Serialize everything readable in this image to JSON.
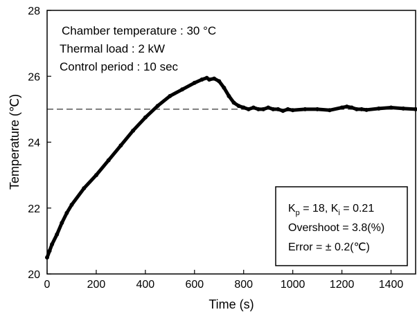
{
  "chart_data": {
    "type": "line",
    "title": "",
    "xlabel": "Time (s)",
    "ylabel": "Temperature (℃)",
    "xlim": [
      0,
      1500
    ],
    "ylim": [
      20,
      28
    ],
    "xticks": [
      0,
      200,
      400,
      600,
      800,
      1000,
      1200,
      1400
    ],
    "yticks": [
      20,
      22,
      24,
      26,
      28
    ],
    "grid": false,
    "legend": "none",
    "annotations": {
      "top_left": [
        "Chamber temperature : 30 °C",
        "Thermal load : 2 kW",
        "Control period : 10 sec"
      ],
      "box": {
        "gains": {
          "kp_symbol": "K",
          "kp_sub": "p",
          "kp_value": " = 18, ",
          "ki_symbol": "K",
          "ki_sub": "i",
          "ki_value": " = 0.21"
        },
        "overshoot": "Overshoot = 3.8(%)",
        "error": "Error = ±  0.2(℃)"
      }
    },
    "setpoint": {
      "y": 25,
      "style": "dashed"
    },
    "series": [
      {
        "color": "#000000",
        "x": [
          0,
          10,
          20,
          40,
          60,
          80,
          100,
          150,
          200,
          250,
          300,
          350,
          400,
          450,
          500,
          550,
          600,
          630,
          650,
          660,
          680,
          700,
          720,
          740,
          760,
          780,
          800,
          820,
          840,
          860,
          880,
          900,
          920,
          940,
          960,
          980,
          1000,
          1050,
          1100,
          1150,
          1200,
          1220,
          1240,
          1260,
          1280,
          1300,
          1350,
          1400,
          1450,
          1500
        ],
        "y": [
          20.5,
          20.7,
          20.9,
          21.2,
          21.55,
          21.85,
          22.1,
          22.6,
          23.0,
          23.45,
          23.9,
          24.35,
          24.75,
          25.1,
          25.4,
          25.6,
          25.8,
          25.9,
          25.95,
          25.9,
          25.93,
          25.85,
          25.65,
          25.4,
          25.2,
          25.1,
          25.05,
          25.0,
          25.05,
          25.0,
          25.0,
          25.05,
          25.0,
          25.0,
          24.95,
          25.0,
          24.97,
          25.0,
          25.0,
          24.97,
          25.05,
          25.08,
          25.05,
          25.0,
          25.0,
          24.98,
          25.02,
          25.05,
          25.02,
          25.0
        ]
      }
    ]
  }
}
